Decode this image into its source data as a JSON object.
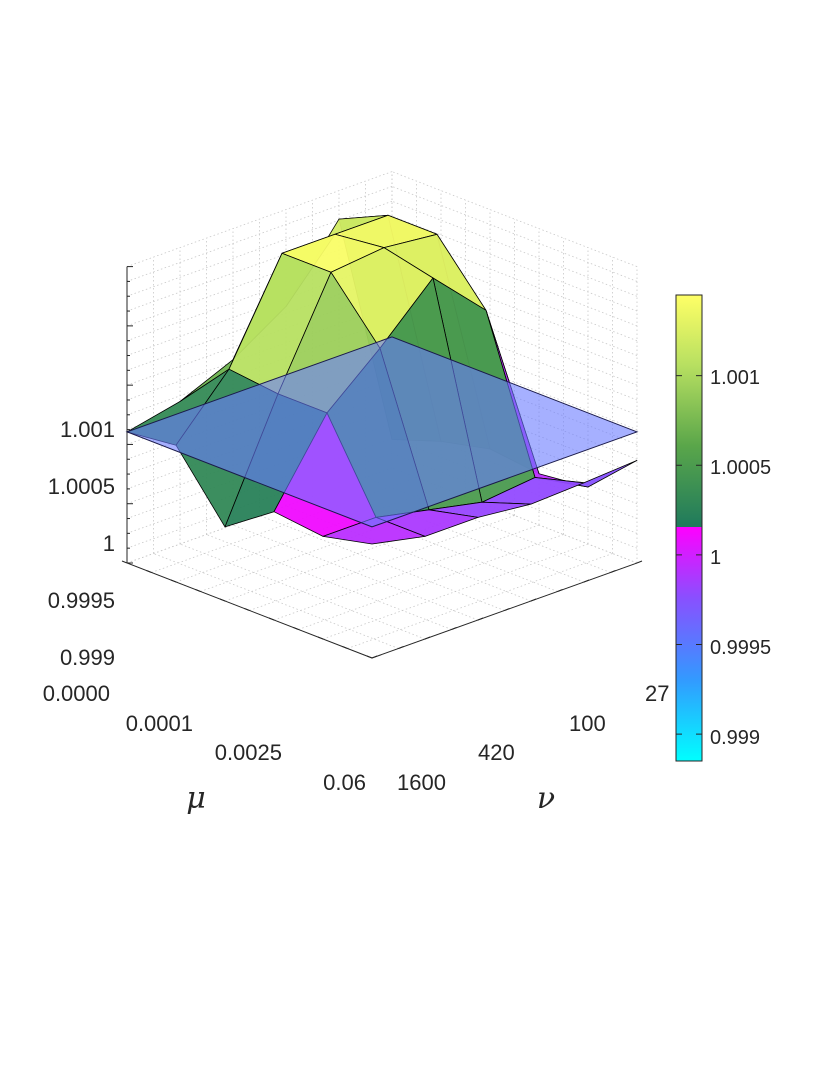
{
  "chart_data": {
    "type": "surface3d",
    "title": "",
    "xlabel": "μ",
    "ylabel": "ν",
    "zlabel": "",
    "x_ticks": [
      "0.0000",
      "0.0001",
      "0.0025",
      "0.06"
    ],
    "y_ticks": [
      "27",
      "100",
      "420",
      "1600"
    ],
    "z_ticks": [
      {
        "value": 0.999,
        "label": "0.999"
      },
      {
        "value": 0.9995,
        "label": "0.9995"
      },
      {
        "value": 1.0,
        "label": "1"
      },
      {
        "value": 1.0005,
        "label": "1.0005"
      },
      {
        "value": 1.001,
        "label": "1.001"
      }
    ],
    "zlim": [
      0.99885,
      1.00145
    ],
    "grid": true,
    "colorbar": {
      "ticks": [
        {
          "value": 0.999,
          "label": "0.999"
        },
        {
          "value": 0.9995,
          "label": "0.9995"
        },
        {
          "value": 1.0,
          "label": "1"
        },
        {
          "value": 1.0005,
          "label": "1.0005"
        },
        {
          "value": 1.001,
          "label": "1.001"
        }
      ],
      "range": [
        0.99885,
        1.00145
      ],
      "colors_low": [
        "#00ffff",
        "#3399ff",
        "#8a4fff",
        "#ff00ff"
      ],
      "colors_high": [
        "#1f7a5c",
        "#5aa64a",
        "#b8e061",
        "#ffff66"
      ]
    },
    "series": [
      {
        "grid_x_index": [
          0,
          1,
          2,
          3,
          4,
          5
        ],
        "grid_y_index": [
          0,
          1,
          2,
          3,
          4,
          5
        ],
        "z": [
          [
            0.99985,
            0.99975,
            0.99975,
            0.9997,
            0.99972,
            0.99975
          ],
          [
            0.99975,
            0.99975,
            0.99965,
            0.99955,
            0.9996,
            0.99935
          ],
          [
            0.9998,
            1.0005,
            1.0009,
            1.00135,
            1.0009,
            0.9993
          ],
          [
            0.9995,
            1.0005,
            1.0014,
            1.00145,
            1.0014,
            0.99935
          ],
          [
            1.00005,
            1.00055,
            1.0014,
            1.0014,
            1.0014,
            0.99925
          ],
          [
            1.0,
            1.0001,
            1.0003,
            1.0006,
            1.0012,
            0.9991
          ]
        ]
      }
    ],
    "reference_plane": {
      "z": 1.0,
      "color": "#6b7bff",
      "opacity": 0.6
    }
  }
}
